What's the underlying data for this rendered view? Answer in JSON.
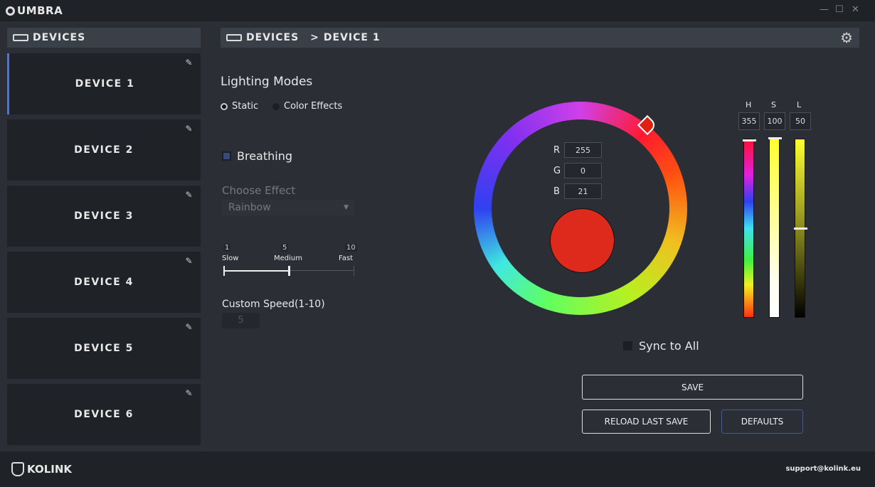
{
  "app": {
    "title": "UMBRA",
    "window_controls": [
      "minimize",
      "maximize",
      "close"
    ]
  },
  "sidebar": {
    "title": "DEVICES",
    "items": [
      {
        "label": "DEVICE 1",
        "selected": true
      },
      {
        "label": "DEVICE 2"
      },
      {
        "label": "DEVICE 3"
      },
      {
        "label": "DEVICE 4"
      },
      {
        "label": "DEVICE 5"
      },
      {
        "label": "DEVICE 6"
      }
    ]
  },
  "breadcrumb": {
    "root": "DEVICES",
    "sep": ">",
    "current": "DEVICE 1"
  },
  "lighting": {
    "title": "Lighting Modes",
    "modes": [
      {
        "label": "Static",
        "selected": true
      },
      {
        "label": "Color Effects",
        "selected": false
      }
    ],
    "breathing_label": "Breathing",
    "breathing_checked": false,
    "choose_effect_label": "Choose Effect",
    "effect_value": "Rainbow",
    "speed": {
      "min": "1",
      "mid": "5",
      "max": "10",
      "min_label": "Slow",
      "mid_label": "Medium",
      "max_label": "Fast",
      "value": 5
    },
    "custom_speed_label": "Custom Speed(1-10)",
    "custom_speed_value": "5"
  },
  "color": {
    "r_label": "R",
    "g_label": "G",
    "b_label": "B",
    "r": "255",
    "g": "0",
    "b": "21",
    "swatch": "#ff0015",
    "h_label": "H",
    "s_label": "S",
    "l_label": "L",
    "h": "355",
    "s": "100",
    "l": "50"
  },
  "sync_label": "Sync to All",
  "sync_checked": false,
  "buttons": {
    "save": "SAVE",
    "reload": "RELOAD LAST SAVE",
    "defaults": "DEFAULTS"
  },
  "footer": {
    "brand": "KOLINK",
    "support": "support@kolink.eu"
  }
}
